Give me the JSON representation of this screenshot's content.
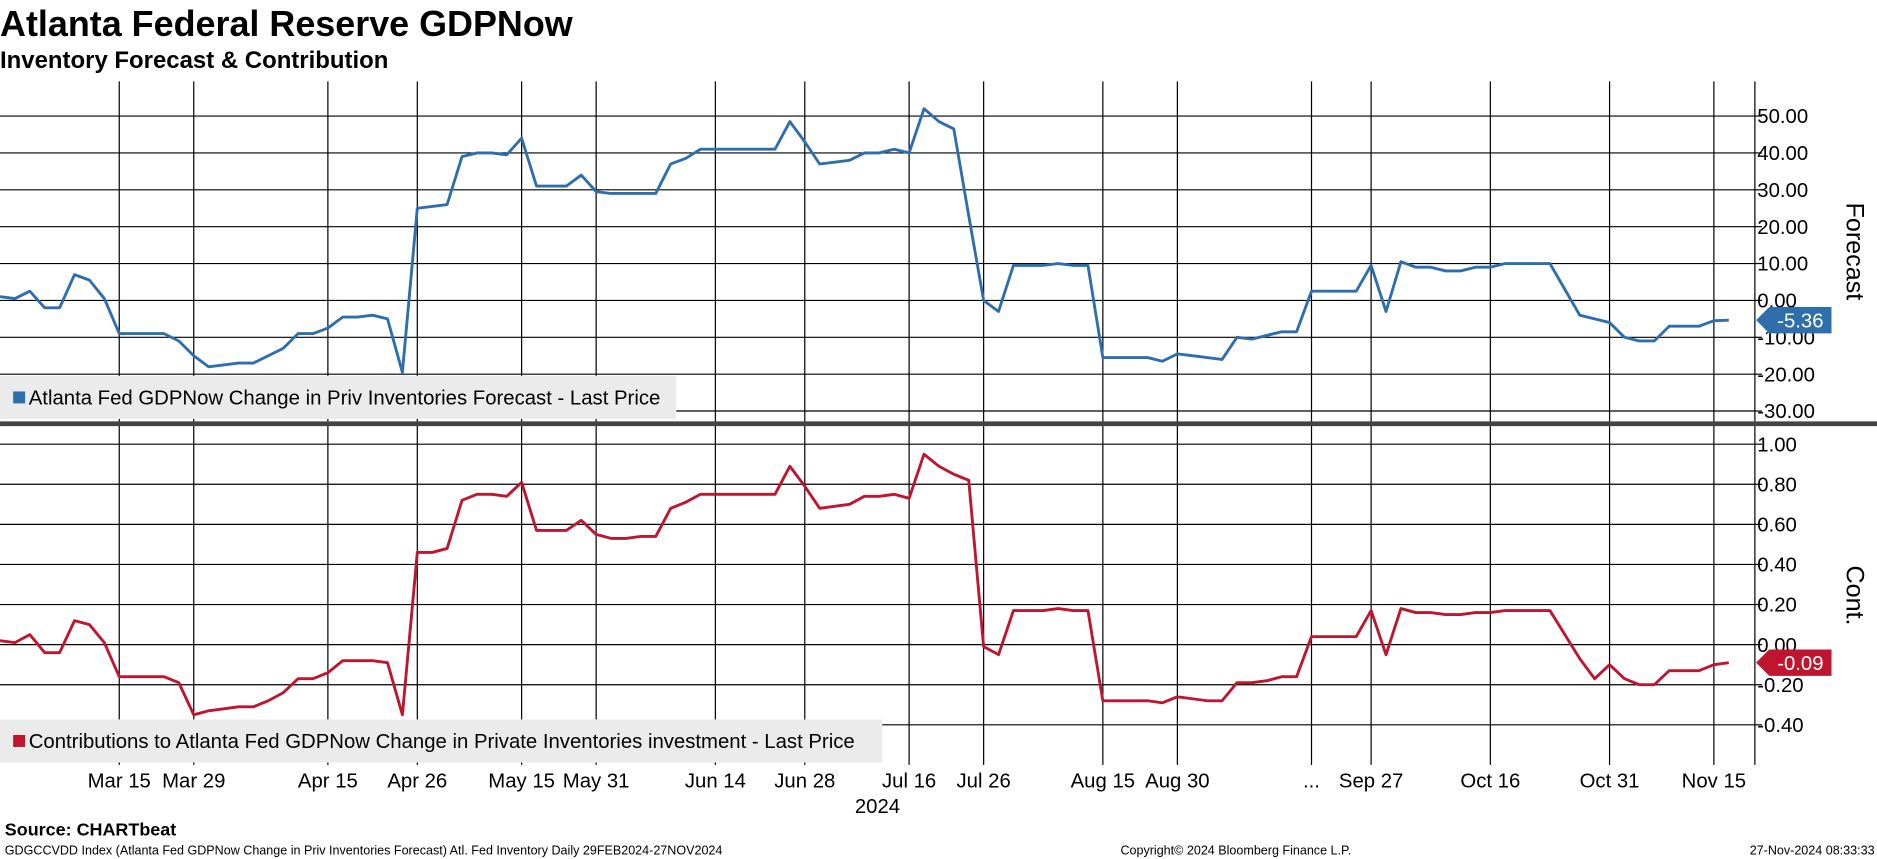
{
  "header": {
    "title": "Atlanta Federal Reserve GDPNow",
    "subtitle": "Inventory Forecast & Contribution"
  },
  "footer": {
    "source": "Source: CHARTbeat",
    "description": "GDGCCVDD Index (Atlanta Fed GDPNow Change in Priv Inventories Forecast) Atl. Fed Inventory  Daily 29FEB2024-27NOV2024",
    "copyright": "Copyright© 2024 Bloomberg Finance L.P.",
    "timestamp": "27-Nov-2024 08:33:33"
  },
  "chart_data": [
    {
      "type": "line",
      "y_label": "Forecast",
      "ylim": [
        -32.8,
        59.4
      ],
      "grid": true,
      "yticks": [
        {
          "value": 50,
          "label": "50.00"
        },
        {
          "value": 40,
          "label": "40.00"
        },
        {
          "value": 30,
          "label": "30.00"
        },
        {
          "value": 20,
          "label": "20.00"
        },
        {
          "value": 10,
          "label": "10.00"
        },
        {
          "value": 0,
          "label": "0.00"
        },
        {
          "value": -10,
          "label": "-10.00"
        },
        {
          "value": -20,
          "label": "-20.00"
        },
        {
          "value": -30,
          "label": "-30.00"
        }
      ],
      "series": [
        {
          "name": "Atlanta Fed GDPNow Change in Priv Inventories Forecast - Last Price",
          "color": "#2e6ead",
          "values": [
            1,
            0.5,
            2.5,
            -2,
            -2,
            7,
            5.5,
            0.5,
            -9,
            -9,
            -9,
            -9,
            -11,
            -15,
            -18,
            -17.5,
            -17,
            -17,
            -15,
            -13,
            -9,
            -9,
            -7.5,
            -4.5,
            -4.5,
            -4,
            -5,
            -19.5,
            25,
            25.5,
            26,
            39,
            40,
            40,
            39.5,
            44,
            31,
            31,
            31,
            34,
            29.5,
            29,
            29,
            29,
            29,
            37,
            38.5,
            41,
            41,
            41,
            41,
            41,
            41,
            48.5,
            43,
            37,
            37.5,
            38,
            40,
            40,
            41,
            40,
            52,
            48.5,
            46.5,
            23,
            0,
            -3,
            9.5,
            9.5,
            9.5,
            10,
            9.5,
            9.5,
            -15.5,
            -15.5,
            -15.5,
            -15.5,
            -16.5,
            -14.5,
            -15,
            -15.5,
            -16,
            -10,
            -10.5,
            -9.5,
            -8.5,
            -8.5,
            2.5,
            2.5,
            2.5,
            2.5,
            9.5,
            -3,
            10.5,
            9,
            9,
            8,
            8,
            9,
            9,
            10,
            10,
            10,
            10,
            3,
            -4,
            -5,
            -6,
            -10,
            -11,
            -11,
            -7,
            -7,
            -7,
            -5.5,
            -5.36
          ]
        }
      ]
    },
    {
      "type": "line",
      "y_label": "Cont.",
      "ylim": [
        -0.6,
        1.09
      ],
      "grid": true,
      "x_year_label": "2024",
      "yticks": [
        {
          "value": 1,
          "label": "1.00"
        },
        {
          "value": 0.8,
          "label": "0.80"
        },
        {
          "value": 0.6,
          "label": "0.60"
        },
        {
          "value": 0.4,
          "label": "0.40"
        },
        {
          "value": 0.2,
          "label": "0.20"
        },
        {
          "value": 0,
          "label": "0.00"
        },
        {
          "value": -0.2,
          "label": "-0.20"
        },
        {
          "value": -0.4,
          "label": "-0.40"
        }
      ],
      "categories": [
        null,
        null,
        null,
        null,
        null,
        null,
        null,
        null,
        "Mar 15",
        null,
        null,
        null,
        null,
        "Mar 29",
        null,
        null,
        null,
        null,
        null,
        null,
        null,
        null,
        "Apr 15",
        null,
        null,
        null,
        null,
        null,
        "Apr 26",
        null,
        null,
        null,
        null,
        null,
        null,
        "May 15",
        null,
        null,
        null,
        null,
        "May 31",
        null,
        null,
        null,
        null,
        null,
        null,
        null,
        "Jun 14",
        null,
        null,
        null,
        null,
        null,
        "Jun 28",
        null,
        null,
        null,
        null,
        null,
        null,
        "Jul 16",
        null,
        null,
        null,
        null,
        "Jul 26",
        null,
        null,
        null,
        null,
        null,
        null,
        null,
        "Aug 15",
        null,
        null,
        null,
        null,
        "Aug 30",
        null,
        null,
        null,
        null,
        null,
        null,
        null,
        null,
        "...",
        null,
        null,
        null,
        "Sep 27",
        null,
        null,
        null,
        null,
        null,
        null,
        null,
        "Oct 16",
        null,
        null,
        null,
        null,
        null,
        null,
        null,
        "Oct 31",
        null,
        null,
        null,
        null,
        null,
        null,
        "Nov 15",
        null
      ],
      "series": [
        {
          "name": "Contributions to Atlanta Fed GDPNow Change in Private Inventories investment - Last Price",
          "color": "#c0152f",
          "values": [
            0.02,
            0.01,
            0.05,
            -0.04,
            -0.04,
            0.12,
            0.1,
            0.01,
            -0.16,
            -0.16,
            -0.16,
            -0.16,
            -0.19,
            -0.35,
            -0.33,
            -0.32,
            -0.31,
            -0.31,
            -0.28,
            -0.24,
            -0.17,
            -0.17,
            -0.14,
            -0.08,
            -0.08,
            -0.08,
            -0.09,
            -0.35,
            0.46,
            0.46,
            0.48,
            0.72,
            0.75,
            0.75,
            0.74,
            0.81,
            0.57,
            0.57,
            0.57,
            0.62,
            0.55,
            0.53,
            0.53,
            0.54,
            0.54,
            0.68,
            0.71,
            0.75,
            0.75,
            0.75,
            0.75,
            0.75,
            0.75,
            0.89,
            0.79,
            0.68,
            0.69,
            0.7,
            0.74,
            0.74,
            0.75,
            0.73,
            0.95,
            0.89,
            0.85,
            0.82,
            -0.01,
            -0.05,
            0.17,
            0.17,
            0.17,
            0.18,
            0.17,
            0.17,
            -0.28,
            -0.28,
            -0.28,
            -0.28,
            -0.29,
            -0.26,
            -0.27,
            -0.28,
            -0.28,
            -0.19,
            -0.19,
            -0.18,
            -0.16,
            -0.16,
            0.04,
            0.04,
            0.04,
            0.04,
            0.17,
            -0.05,
            0.18,
            0.16,
            0.16,
            0.15,
            0.15,
            0.16,
            0.16,
            0.17,
            0.17,
            0.17,
            0.17,
            0.05,
            -0.07,
            -0.17,
            -0.1,
            -0.17,
            -0.2,
            -0.2,
            -0.13,
            -0.13,
            -0.13,
            -0.1,
            -0.09
          ]
        }
      ]
    }
  ]
}
